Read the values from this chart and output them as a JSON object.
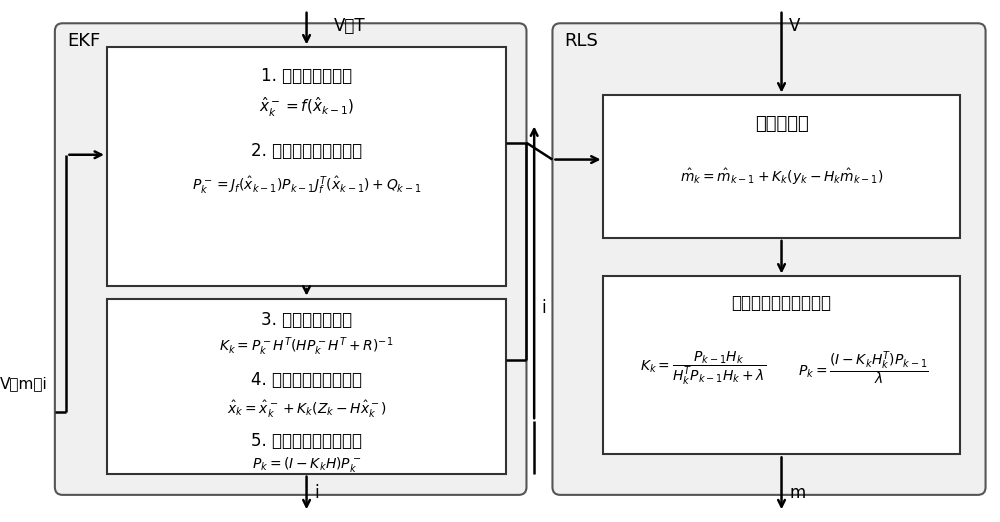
{
  "fig_bg": "#ffffff",
  "box_fill": "#ffffff",
  "box_edge": "#333333",
  "outer_box_fill": "#f0f0f0",
  "outer_box_edge": "#555555",
  "arrow_color": "#000000",
  "text_color": "#000000",
  "ekf_label": "EKF",
  "rls_label": "RLS",
  "vt_label": "V、T",
  "v_label": "V",
  "vmi_label": "V、m、i",
  "i_label": "i",
  "m_label": "m",
  "box1_title": "1. 计算先验估算值",
  "box1_eq1": "$\\hat{x}_k^- = f(\\hat{x}_{k-1})$",
  "box1_title2": "2. 计算先验误差协方差",
  "box1_eq2": "$P_k^- = J_f(\\hat{x}_{k-1})P_{k-1}J_f^T(\\hat{x}_{k-1}) + Q_{k-1}$",
  "box2_title1": "3. 计算卡尔曼增益",
  "box2_eq1": "$K_k = P_k^-H^T(HP_k^-H^T + R)^{-1}$",
  "box2_title2": "4. 更新后验状态估算值",
  "box2_eq2": "$\\hat{x}_k = \\hat{x}_k^- + K_k(Z_k - H\\hat{x}_k^-)$",
  "box2_title3": "5. 更新后验误差协方差",
  "box2_eq3": "$P_k = (I - K_kH)P_k^-$",
  "box3_title": "计算估算值",
  "box3_eq": "$\\hat{m}_k = \\hat{m}_{k-1} + K_k(y_k - H_k\\hat{m}_{k-1})$",
  "box4_title": "计算增益和误差协方差",
  "box4_eq1": "$K_k = \\dfrac{P_{k-1}H_k}{H_k^TP_{k-1}H_k + \\lambda}$",
  "box4_eq2": "$P_k = \\dfrac{(I - K_kH_k^T)P_{k-1}}{\\lambda}$"
}
